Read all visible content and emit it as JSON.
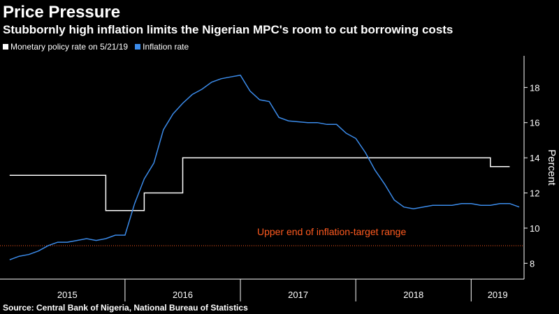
{
  "title": "Price Pressure",
  "subtitle": "Stubbornly high inflation limits the Nigerian MPC's room to cut borrowing costs",
  "legend": [
    {
      "label": "Monetary policy rate on 5/21/19",
      "color": "#ffffff"
    },
    {
      "label": "Inflation rate",
      "color": "#3b8bea"
    }
  ],
  "source": "Source: Central Bank of Nigeria, National Bureau of Statistics",
  "colors": {
    "background": "#000000",
    "policy_rate": "#ffffff",
    "inflation": "#3b8bea",
    "reference_line": "#ff5a1f",
    "axis": "#ffffff"
  },
  "chart_data": {
    "type": "line",
    "title": "Price Pressure",
    "subtitle": "Stubbornly high inflation limits the Nigerian MPC's room to cut borrowing costs",
    "ylabel": "Percent",
    "xlabel": "",
    "ylim": [
      7.1,
      19.8
    ],
    "y_ticks": [
      8,
      10,
      12,
      14,
      16,
      18
    ],
    "y_axis_side": "right",
    "x_range": [
      "2014-12",
      "2019-05"
    ],
    "year_labels": [
      "2015",
      "2016",
      "2017",
      "2018",
      "2019"
    ],
    "grid": false,
    "legend_position": "top-left",
    "reference_line": {
      "y": 9,
      "label": "Upper end of inflation-target range",
      "style": "dotted"
    },
    "series": [
      {
        "name": "Monetary policy rate on 5/21/19",
        "type": "step",
        "points": [
          [
            "2015-01",
            13
          ],
          [
            "2015-11",
            13
          ],
          [
            "2015-11",
            11
          ],
          [
            "2016-03",
            11
          ],
          [
            "2016-03",
            12
          ],
          [
            "2016-07",
            12
          ],
          [
            "2016-07",
            14
          ],
          [
            "2019-03",
            14
          ],
          [
            "2019-03",
            13.5
          ],
          [
            "2019-05",
            13.5
          ]
        ]
      },
      {
        "name": "Inflation rate",
        "type": "line",
        "points": [
          [
            "2015-01",
            8.2
          ],
          [
            "2015-02",
            8.4
          ],
          [
            "2015-03",
            8.5
          ],
          [
            "2015-04",
            8.7
          ],
          [
            "2015-05",
            9.0
          ],
          [
            "2015-06",
            9.2
          ],
          [
            "2015-07",
            9.2
          ],
          [
            "2015-08",
            9.3
          ],
          [
            "2015-09",
            9.4
          ],
          [
            "2015-10",
            9.3
          ],
          [
            "2015-11",
            9.4
          ],
          [
            "2015-12",
            9.6
          ],
          [
            "2016-01",
            9.6
          ],
          [
            "2016-02",
            11.4
          ],
          [
            "2016-03",
            12.8
          ],
          [
            "2016-04",
            13.7
          ],
          [
            "2016-05",
            15.6
          ],
          [
            "2016-06",
            16.5
          ],
          [
            "2016-07",
            17.1
          ],
          [
            "2016-08",
            17.6
          ],
          [
            "2016-09",
            17.9
          ],
          [
            "2016-10",
            18.3
          ],
          [
            "2016-11",
            18.5
          ],
          [
            "2016-12",
            18.6
          ],
          [
            "2017-01",
            18.7
          ],
          [
            "2017-02",
            17.8
          ],
          [
            "2017-03",
            17.3
          ],
          [
            "2017-04",
            17.2
          ],
          [
            "2017-05",
            16.3
          ],
          [
            "2017-06",
            16.1
          ],
          [
            "2017-07",
            16.05
          ],
          [
            "2017-08",
            16.0
          ],
          [
            "2017-09",
            16.0
          ],
          [
            "2017-10",
            15.9
          ],
          [
            "2017-11",
            15.9
          ],
          [
            "2017-12",
            15.4
          ],
          [
            "2018-01",
            15.1
          ],
          [
            "2018-02",
            14.3
          ],
          [
            "2018-03",
            13.3
          ],
          [
            "2018-04",
            12.5
          ],
          [
            "2018-05",
            11.6
          ],
          [
            "2018-06",
            11.2
          ],
          [
            "2018-07",
            11.1
          ],
          [
            "2018-08",
            11.2
          ],
          [
            "2018-09",
            11.3
          ],
          [
            "2018-10",
            11.3
          ],
          [
            "2018-11",
            11.3
          ],
          [
            "2018-12",
            11.4
          ],
          [
            "2019-01",
            11.4
          ],
          [
            "2019-02",
            11.3
          ],
          [
            "2019-03",
            11.3
          ],
          [
            "2019-04",
            11.4
          ],
          [
            "2019-05",
            11.4
          ],
          [
            "2019-06",
            11.2
          ]
        ]
      }
    ]
  }
}
